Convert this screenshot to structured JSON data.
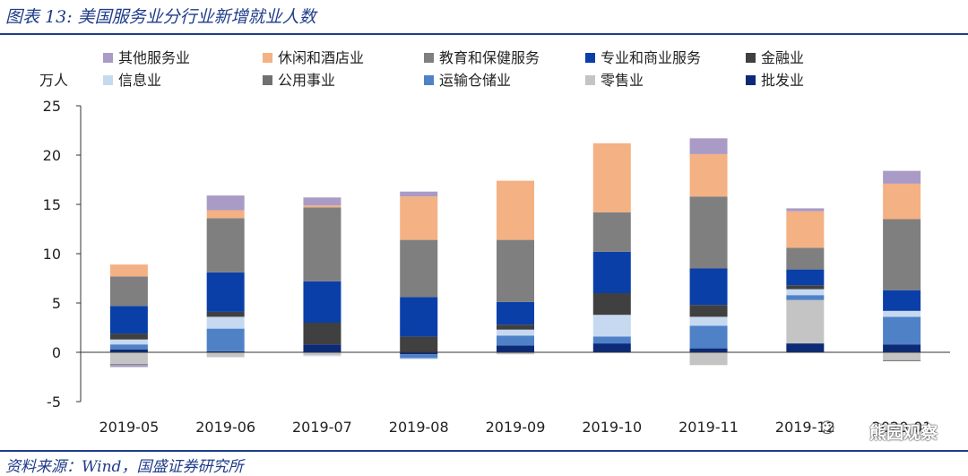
{
  "figure_title": "图表 13: 美国服务业分行业新增就业人数",
  "source": "资料来源：Wind，国盛证券研究所",
  "watermark": "熊园观察",
  "chart_data": {
    "type": "bar",
    "stacked": true,
    "ylabel": "万人",
    "ylim": [
      -5,
      25
    ],
    "yticks": [
      -5,
      0,
      5,
      10,
      15,
      20,
      25
    ],
    "grid": false,
    "legend_position": "top",
    "categories": [
      "2019-05",
      "2019-06",
      "2019-07",
      "2019-08",
      "2019-09",
      "2019-10",
      "2019-11",
      "2019-12",
      "2020-01"
    ],
    "series": [
      {
        "name": "批发业",
        "color": "#0b2a78",
        "values": [
          0.3,
          0.1,
          0.8,
          -0.2,
          0.7,
          0.9,
          0.4,
          0.9,
          0.8
        ]
      },
      {
        "name": "零售业",
        "color": "#c4c4c4",
        "values": [
          -1.2,
          -0.5,
          -0.3,
          0.0,
          -0.2,
          0.0,
          -1.3,
          4.4,
          -0.8
        ]
      },
      {
        "name": "运输仓储业",
        "color": "#4f81c7",
        "values": [
          0.5,
          2.3,
          0.0,
          -0.4,
          1.0,
          0.7,
          2.3,
          0.5,
          2.8
        ]
      },
      {
        "name": "公用事业",
        "color": "#707070",
        "values": [
          -0.1,
          0.0,
          0.0,
          0.0,
          0.0,
          0.0,
          0.0,
          0.0,
          -0.1
        ]
      },
      {
        "name": "信息业",
        "color": "#c6d9f1",
        "values": [
          0.5,
          1.2,
          -0.1,
          -0.1,
          0.6,
          2.2,
          0.9,
          0.6,
          0.6
        ]
      },
      {
        "name": "金融业",
        "color": "#404040",
        "values": [
          0.6,
          0.5,
          2.2,
          1.6,
          0.5,
          2.2,
          1.2,
          0.4,
          0.0
        ]
      },
      {
        "name": "专业和商业服务",
        "color": "#0a3fa8",
        "values": [
          2.8,
          4.0,
          4.2,
          4.0,
          2.3,
          4.2,
          3.7,
          1.6,
          2.1
        ]
      },
      {
        "name": "教育和保健服务",
        "color": "#7f7f7f",
        "values": [
          3.0,
          5.5,
          7.5,
          5.8,
          6.3,
          4.0,
          7.3,
          2.2,
          7.2
        ]
      },
      {
        "name": "休闲和酒店业",
        "color": "#f4b183",
        "values": [
          1.2,
          0.8,
          0.2,
          4.4,
          6.0,
          7.0,
          4.3,
          3.7,
          3.6
        ]
      },
      {
        "name": "其他服务业",
        "color": "#a99bc6",
        "values": [
          -0.2,
          1.5,
          0.8,
          0.5,
          0.0,
          0.0,
          1.6,
          0.3,
          1.3
        ]
      }
    ],
    "legend_order": [
      "其他服务业",
      "休闲和酒店业",
      "教育和保健服务",
      "专业和商业服务",
      "金融业",
      "信息业",
      "公用事业",
      "运输仓储业",
      "零售业",
      "批发业"
    ]
  }
}
